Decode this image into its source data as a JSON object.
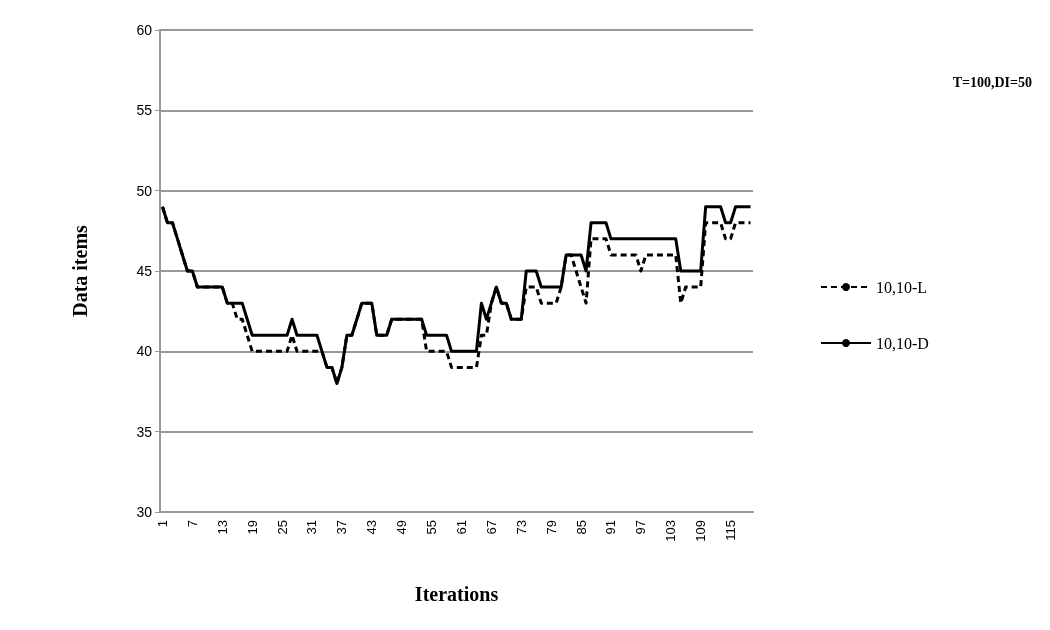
{
  "chart_data": {
    "type": "line",
    "xlabel": "Iterations",
    "ylabel": "Data items",
    "annotations": [
      "T=100,DI=50"
    ],
    "categories": [
      "1",
      null,
      null,
      null,
      null,
      null,
      "7",
      null,
      null,
      null,
      null,
      null,
      "13",
      null,
      null,
      null,
      null,
      null,
      "19",
      null,
      null,
      null,
      null,
      null,
      "25",
      null,
      null,
      null,
      null,
      null,
      "31",
      null,
      null,
      null,
      null,
      null,
      "37",
      null,
      null,
      null,
      null,
      null,
      "43",
      null,
      null,
      null,
      null,
      null,
      "49",
      null,
      null,
      null,
      null,
      null,
      "55",
      null,
      null,
      null,
      null,
      null,
      "61",
      null,
      null,
      null,
      null,
      null,
      "67",
      null,
      null,
      null,
      null,
      null,
      "73",
      null,
      null,
      null,
      null,
      null,
      "79",
      null,
      null,
      null,
      null,
      null,
      "85",
      null,
      null,
      null,
      null,
      null,
      "91",
      null,
      null,
      null,
      null,
      null,
      "97",
      null,
      null,
      null,
      null,
      null,
      "103",
      null,
      null,
      null,
      null,
      null,
      "109",
      null,
      null,
      null,
      null,
      null,
      "115",
      null,
      null,
      null,
      null
    ],
    "ylim": [
      30,
      60
    ],
    "yticks": [
      30,
      35,
      40,
      45,
      50,
      55,
      60
    ],
    "grid": "y",
    "legend": "right",
    "series": [
      {
        "name": "10,10-L",
        "color": "#000000",
        "line_style": "dashed",
        "values": [
          49,
          48,
          48,
          47,
          46,
          45,
          45,
          44,
          44,
          44,
          44,
          44,
          44,
          43,
          43,
          42,
          42,
          41,
          40,
          40,
          40,
          40,
          40,
          40,
          40,
          40,
          41,
          40,
          40,
          40,
          40,
          40,
          40,
          39,
          39,
          38,
          39,
          41,
          41,
          42,
          43,
          43,
          43,
          41,
          41,
          41,
          42,
          42,
          42,
          42,
          42,
          42,
          42,
          40,
          40,
          40,
          40,
          40,
          39,
          39,
          39,
          39,
          39,
          39,
          41,
          41,
          43,
          44,
          43,
          43,
          42,
          42,
          42,
          44,
          44,
          44,
          43,
          43,
          43,
          43,
          44,
          46,
          46,
          45,
          44,
          43,
          47,
          47,
          47,
          47,
          46,
          46,
          46,
          46,
          46,
          46,
          45,
          46,
          46,
          46,
          46,
          46,
          46,
          46,
          43,
          44,
          44,
          44,
          44,
          48,
          48,
          48,
          48,
          47,
          47,
          48,
          48,
          48,
          48
        ]
      },
      {
        "name": "10,10-D",
        "color": "#000000",
        "line_style": "solid",
        "values": [
          49,
          48,
          48,
          47,
          46,
          45,
          45,
          44,
          44,
          44,
          44,
          44,
          44,
          43,
          43,
          43,
          43,
          42,
          41,
          41,
          41,
          41,
          41,
          41,
          41,
          41,
          42,
          41,
          41,
          41,
          41,
          41,
          40,
          39,
          39,
          38,
          39,
          41,
          41,
          42,
          43,
          43,
          43,
          41,
          41,
          41,
          42,
          42,
          42,
          42,
          42,
          42,
          42,
          41,
          41,
          41,
          41,
          41,
          40,
          40,
          40,
          40,
          40,
          40,
          43,
          42,
          43,
          44,
          43,
          43,
          42,
          42,
          42,
          45,
          45,
          45,
          44,
          44,
          44,
          44,
          44,
          46,
          46,
          46,
          46,
          45,
          48,
          48,
          48,
          48,
          47,
          47,
          47,
          47,
          47,
          47,
          47,
          47,
          47,
          47,
          47,
          47,
          47,
          47,
          45,
          45,
          45,
          45,
          45,
          49,
          49,
          49,
          49,
          48,
          48,
          49,
          49,
          49,
          49
        ]
      }
    ]
  }
}
